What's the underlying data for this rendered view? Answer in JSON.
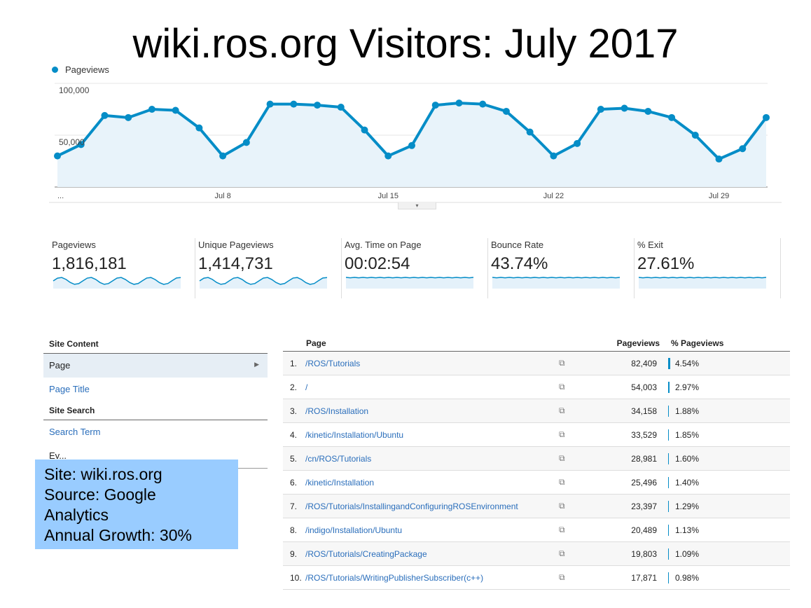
{
  "title": "wiki.ros.org Visitors: July 2017",
  "chart_data": {
    "type": "area",
    "series": [
      {
        "name": "Pageviews",
        "values": [
          30000,
          41000,
          69000,
          67000,
          75000,
          74000,
          57000,
          30000,
          43000,
          80000,
          80000,
          79000,
          77000,
          55000,
          30000,
          40000,
          79000,
          81000,
          80000,
          73000,
          53000,
          30000,
          42000,
          75000,
          76000,
          73000,
          67000,
          50000,
          27000,
          37000,
          67000
        ]
      }
    ],
    "x_tick_labels": [
      "...",
      "Jul 8",
      "Jul 15",
      "Jul 22",
      "Jul 29"
    ],
    "y_tick_labels": [
      "100,000",
      "50,000"
    ],
    "ylim": [
      0,
      100000
    ],
    "grid": true,
    "legend": "top-left",
    "color": "#058dc7"
  },
  "handle_glyph": "▾",
  "metrics": [
    {
      "label": "Pageviews",
      "value": "1,816,181"
    },
    {
      "label": "Unique Pageviews",
      "value": "1,414,731"
    },
    {
      "label": "Avg. Time on Page",
      "value": "00:02:54"
    },
    {
      "label": "Bounce Rate",
      "value": "43.74%"
    },
    {
      "label": "% Exit",
      "value": "27.61%"
    }
  ],
  "left_panel": {
    "site_content": "Site Content",
    "page": "Page",
    "page_title": "Page Title",
    "site_search": "Site Search",
    "search_term": "Search Term",
    "partial": "Ev..."
  },
  "note": {
    "line1": "Site: wiki.ros.org",
    "line2": "Source: Google",
    "line3": "Analytics",
    "line4": "Annual Growth: 30%"
  },
  "table": {
    "headers": {
      "page": "Page",
      "pageviews": "Pageviews",
      "pct": "% Pageviews"
    },
    "rows": [
      {
        "idx": "1.",
        "page": "/ROS/Tutorials",
        "pageviews": "82,409",
        "pct": "4.54%",
        "share": 4.54
      },
      {
        "idx": "2.",
        "page": "/",
        "pageviews": "54,003",
        "pct": "2.97%",
        "share": 2.97
      },
      {
        "idx": "3.",
        "page": "/ROS/Installation",
        "pageviews": "34,158",
        "pct": "1.88%",
        "share": 1.88
      },
      {
        "idx": "4.",
        "page": "/kinetic/Installation/Ubuntu",
        "pageviews": "33,529",
        "pct": "1.85%",
        "share": 1.85
      },
      {
        "idx": "5.",
        "page": "/cn/ROS/Tutorials",
        "pageviews": "28,981",
        "pct": "1.60%",
        "share": 1.6
      },
      {
        "idx": "6.",
        "page": "/kinetic/Installation",
        "pageviews": "25,496",
        "pct": "1.40%",
        "share": 1.4
      },
      {
        "idx": "7.",
        "page": "/ROS/Tutorials/InstallingandConfiguringROSEnvironment",
        "pageviews": "23,397",
        "pct": "1.29%",
        "share": 1.29
      },
      {
        "idx": "8.",
        "page": "/indigo/Installation/Ubuntu",
        "pageviews": "20,489",
        "pct": "1.13%",
        "share": 1.13
      },
      {
        "idx": "9.",
        "page": "/ROS/Tutorials/CreatingPackage",
        "pageviews": "19,803",
        "pct": "1.09%",
        "share": 1.09
      },
      {
        "idx": "10.",
        "page": "/ROS/Tutorials/WritingPublisherSubscriber(c++)",
        "pageviews": "17,871",
        "pct": "0.98%",
        "share": 0.98
      }
    ]
  }
}
